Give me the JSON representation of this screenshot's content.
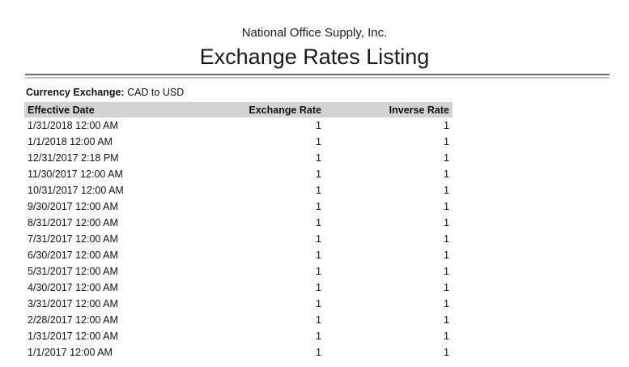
{
  "report": {
    "company": "National Office Supply, Inc.",
    "title": "Exchange Rates Listing",
    "filter_label": "Currency Exchange:",
    "filter_value": "CAD to USD"
  },
  "table": {
    "columns": [
      "Effective Date",
      "Exchange Rate",
      "Inverse Rate"
    ],
    "rows": [
      [
        "1/31/2018 12:00 AM",
        "1",
        "1"
      ],
      [
        "1/1/2018 12:00 AM",
        "1",
        "1"
      ],
      [
        "12/31/2017 2:18 PM",
        "1",
        "1"
      ],
      [
        "11/30/2017 12:00 AM",
        "1",
        "1"
      ],
      [
        "10/31/2017 12:00 AM",
        "1",
        "1"
      ],
      [
        "9/30/2017 12:00 AM",
        "1",
        "1"
      ],
      [
        "8/31/2017 12:00 AM",
        "1",
        "1"
      ],
      [
        "7/31/2017 12:00 AM",
        "1",
        "1"
      ],
      [
        "6/30/2017 12:00 AM",
        "1",
        "1"
      ],
      [
        "5/31/2017 12:00 AM",
        "1",
        "1"
      ],
      [
        "4/30/2017 12:00 AM",
        "1",
        "1"
      ],
      [
        "3/31/2017 12:00 AM",
        "1",
        "1"
      ],
      [
        "2/28/2017 12:00 AM",
        "1",
        "1"
      ],
      [
        "1/31/2017 12:00 AM",
        "1",
        "1"
      ],
      [
        "1/1/2017 12:00 AM",
        "1",
        "1"
      ]
    ]
  },
  "colors": {
    "header_band": "#d3d3d3",
    "rule_dark": "#6a6a6a",
    "rule_light": "#c2c2c2",
    "text": "#111111"
  }
}
